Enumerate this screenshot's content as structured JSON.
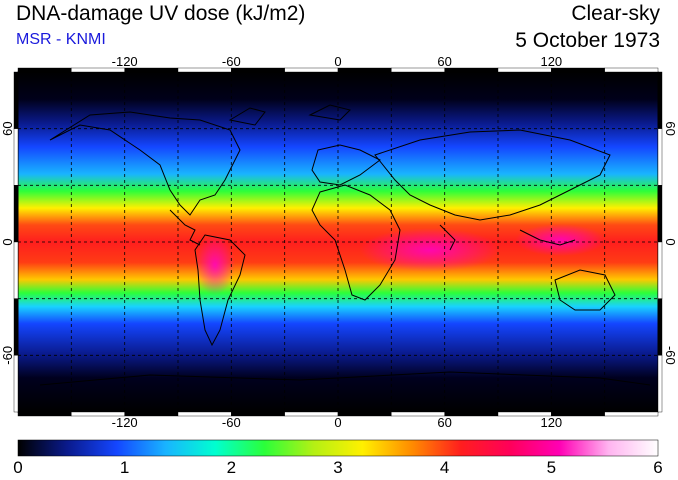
{
  "header": {
    "title": "DNA-damage UV dose (kJ/m2)",
    "subtitle": "MSR - KNMI",
    "sky": "Clear-sky",
    "date": "5 October 1973"
  },
  "map": {
    "lon_ticks": [
      "-120",
      "-60",
      "0",
      "60",
      "120"
    ],
    "lat_ticks": [
      "60",
      "0",
      "-60"
    ],
    "lon_range": [
      -180,
      180
    ],
    "lat_range": [
      -90,
      90
    ],
    "gridlines": "dashed every 30 degrees"
  },
  "colorbar": {
    "labels": [
      "0",
      "1",
      "2",
      "3",
      "4",
      "5",
      "6"
    ],
    "range": [
      0,
      6
    ],
    "colors": [
      "#000000",
      "#0a1a8c",
      "#1446ff",
      "#19b4ff",
      "#00ffd0",
      "#2bff3a",
      "#b4f014",
      "#fff000",
      "#ff8c00",
      "#ff1e1e",
      "#ff005a",
      "#ff00b4",
      "#ffb4f0",
      "#ffffff"
    ]
  }
}
